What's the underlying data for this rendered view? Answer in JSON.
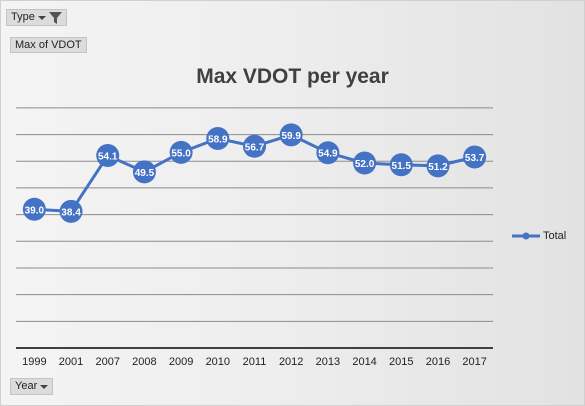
{
  "filters": {
    "type_label": "Type",
    "values_label": "Max of VDOT",
    "year_label": "Year"
  },
  "icons": {
    "type_dropdown": "chevron-down-icon",
    "type_filter": "funnel-filter-icon",
    "year_dropdown": "chevron-down-icon"
  },
  "colors": {
    "series": "#4472c4",
    "marker_text": "#ffffff",
    "axis": "#404040",
    "gridline": "#8c8c8c",
    "title": "#404040"
  },
  "chart_data": {
    "type": "line",
    "title": "Max VDOT per year",
    "xlabel": "",
    "ylabel": "",
    "categories": [
      "1999",
      "2001",
      "2007",
      "2008",
      "2009",
      "2010",
      "2011",
      "2012",
      "2013",
      "2014",
      "2015",
      "2016",
      "2017"
    ],
    "series": [
      {
        "name": "Total",
        "values": [
          39.0,
          38.4,
          54.1,
          49.5,
          55.0,
          58.9,
          56.7,
          59.9,
          54.9,
          52.0,
          51.5,
          51.2,
          53.7
        ]
      }
    ],
    "data_labels": [
      "39.0",
      "38.4",
      "54.1",
      "49.5",
      "55.0",
      "58.9",
      "56.7",
      "59.9",
      "54.9",
      "52.0",
      "51.5",
      "51.2",
      "53.7"
    ],
    "ylim": [
      0,
      70
    ],
    "y_gridline_step": 7.5,
    "grid": true,
    "y_tick_labels_shown": false,
    "legend_position": "right",
    "markers": "circle"
  }
}
